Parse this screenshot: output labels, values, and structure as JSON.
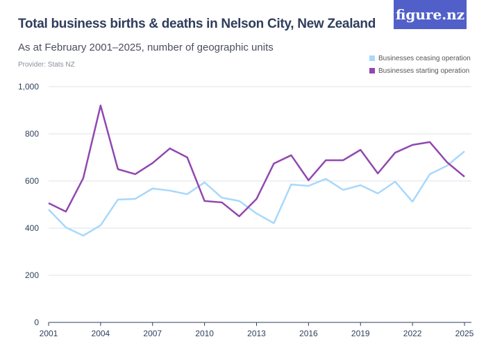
{
  "title": "Total business births & deaths in Nelson City, New Zealand",
  "subtitle": "As at February 2001–2025, number of geographic units",
  "provider": "Provider: Stats NZ",
  "logo": "figure.nz",
  "chart_data": {
    "type": "line",
    "x": [
      2001,
      2002,
      2003,
      2004,
      2005,
      2006,
      2007,
      2008,
      2009,
      2010,
      2011,
      2012,
      2013,
      2014,
      2015,
      2016,
      2017,
      2018,
      2019,
      2020,
      2021,
      2022,
      2023,
      2024,
      2025
    ],
    "xticks": [
      "2001",
      "2004",
      "2007",
      "2010",
      "2013",
      "2016",
      "2019",
      "2022",
      "2025"
    ],
    "yticks": [
      "0",
      "200",
      "400",
      "600",
      "800",
      "1,000"
    ],
    "ylim": [
      0,
      1000
    ],
    "grid": true,
    "legend_position": "top-right",
    "series": [
      {
        "name": "Businesses ceasing operation",
        "color": "#a8d8fb",
        "values": [
          479,
          403,
          368,
          412,
          521,
          524,
          568,
          559,
          544,
          594,
          529,
          515,
          462,
          421,
          585,
          579,
          609,
          562,
          582,
          547,
          597,
          512,
          629,
          665,
          726
        ]
      },
      {
        "name": "Businesses starting operation",
        "color": "#9147b0",
        "values": [
          506,
          470,
          612,
          920,
          650,
          629,
          676,
          738,
          700,
          515,
          509,
          450,
          524,
          674,
          709,
          603,
          688,
          688,
          732,
          632,
          720,
          753,
          765,
          679,
          618
        ]
      }
    ]
  }
}
